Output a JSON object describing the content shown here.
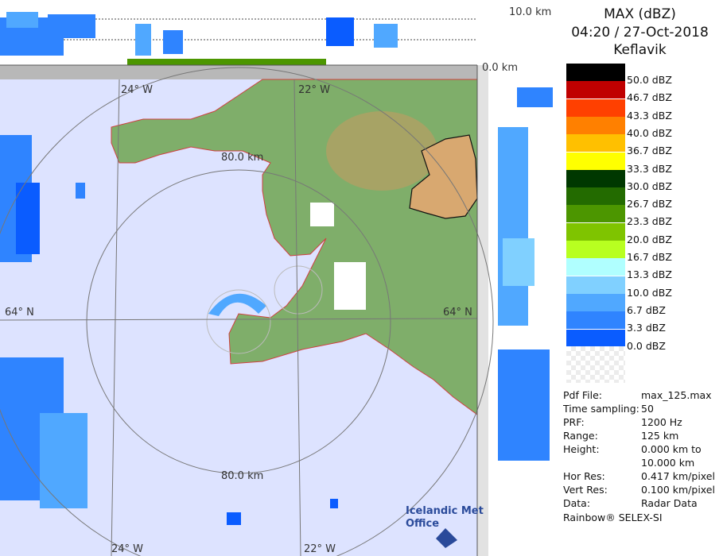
{
  "map": {
    "top_scale_label": "10.0 km",
    "zero_label": "0.0 km",
    "grid_labels": {
      "lon_top_left": "24° W",
      "lon_top_right": "22° W",
      "lon_bottom_left": "24° W",
      "lon_bottom_right": "22° W",
      "lat_left": "64° N",
      "lat_right": "64° N",
      "ring_upper": "80.0 km",
      "ring_lower": "80.0 km"
    },
    "logo": {
      "line1": "Icelandic Met",
      "line2": "Office"
    },
    "colors": {
      "sea": "#dde3ff",
      "land": "#7fae6a",
      "coast": "#d04040",
      "echo": "#1e6fff"
    }
  },
  "panel": {
    "title": "MAX (dBZ)",
    "datetime": "04:20 / 27-Oct-2018",
    "site": "Keflavik",
    "legend": [
      {
        "label": "50.0 dBZ",
        "color": "#000000"
      },
      {
        "label": "46.7 dBZ",
        "color": "#c00000"
      },
      {
        "label": "43.3 dBZ",
        "color": "#ff4000"
      },
      {
        "label": "40.0 dBZ",
        "color": "#ff8000"
      },
      {
        "label": "36.7 dBZ",
        "color": "#ffc000"
      },
      {
        "label": "33.3 dBZ",
        "color": "#ffff00"
      },
      {
        "label": "30.0 dBZ",
        "color": "#003800"
      },
      {
        "label": "26.7 dBZ",
        "color": "#236b00"
      },
      {
        "label": "23.3 dBZ",
        "color": "#4c9600"
      },
      {
        "label": "20.0 dBZ",
        "color": "#7fc400"
      },
      {
        "label": "16.7 dBZ",
        "color": "#b8ff20"
      },
      {
        "label": "13.3 dBZ",
        "color": "#b0ffff"
      },
      {
        "label": "10.0 dBZ",
        "color": "#80d0ff"
      },
      {
        "label": "6.7 dBZ",
        "color": "#50a8ff"
      },
      {
        "label": "3.3 dBZ",
        "color": "#2f84ff"
      },
      {
        "label": "0.0 dBZ",
        "color": "#0a5cff"
      }
    ],
    "info": [
      {
        "key": "Pdf File:",
        "value": "max_125.max"
      },
      {
        "key": "Time sampling:",
        "value": "50"
      },
      {
        "key": "PRF:",
        "value": "1200 Hz"
      },
      {
        "key": "Range:",
        "value": "125 km"
      },
      {
        "key": "Height:",
        "value": "0.000 km to"
      },
      {
        "key": "",
        "value": "10.000 km"
      },
      {
        "key": "Hor Res:",
        "value": "0.417 km/pixel"
      },
      {
        "key": "Vert Res:",
        "value": "0.100 km/pixel"
      },
      {
        "key": "Data:",
        "value": "Radar Data"
      }
    ],
    "footer": "Rainbow® SELEX-SI"
  }
}
